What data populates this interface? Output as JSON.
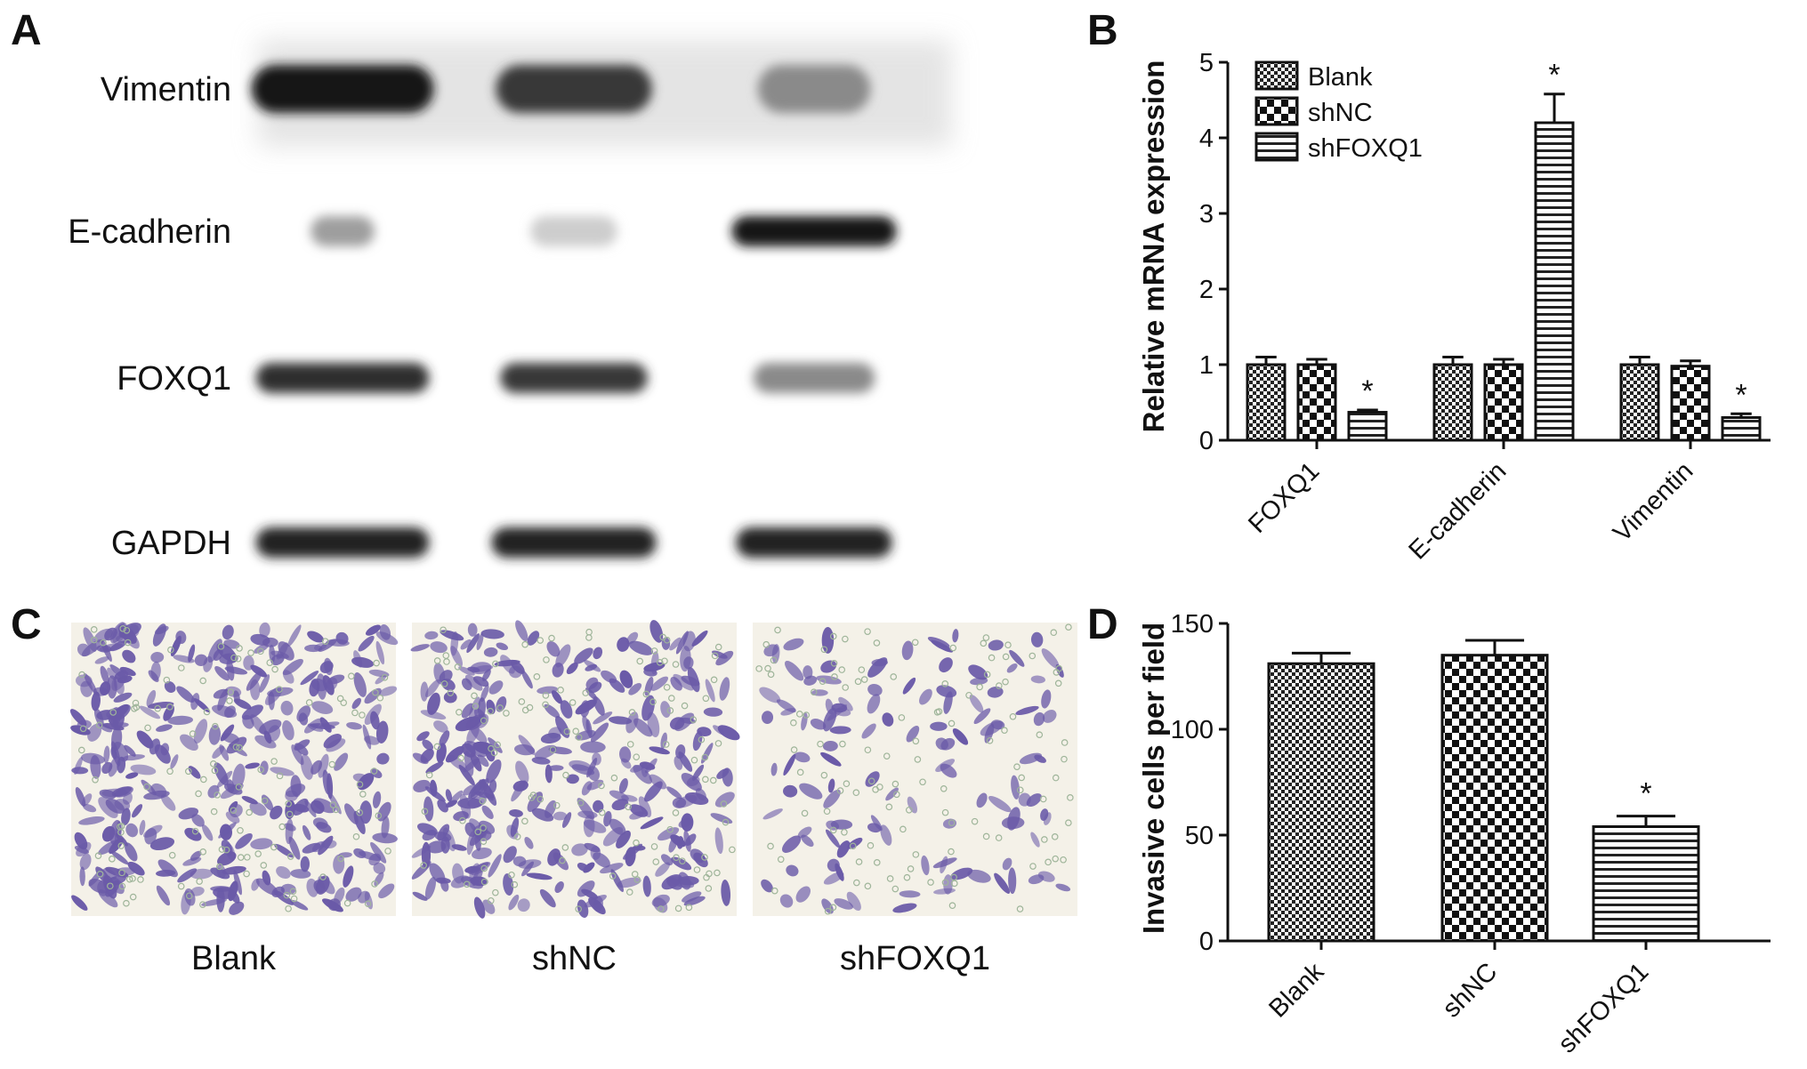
{
  "panels": {
    "a": {
      "letter": "A"
    },
    "b": {
      "letter": "B"
    },
    "c": {
      "letter": "C"
    },
    "d": {
      "letter": "D"
    }
  },
  "blot": {
    "lanes": 3,
    "rows": [
      {
        "label": "Vimentin",
        "intensity": [
          1.0,
          0.85,
          0.45
        ],
        "width": [
          1.0,
          0.9,
          0.65
        ]
      },
      {
        "label": "E-cadherin",
        "intensity": [
          0.35,
          0.12,
          1.0
        ],
        "width": [
          0.35,
          0.5,
          0.95
        ]
      },
      {
        "label": "FOXQ1",
        "intensity": [
          0.9,
          0.85,
          0.45
        ],
        "width": [
          0.95,
          0.85,
          0.7
        ]
      },
      {
        "label": "GAPDH",
        "intensity": [
          0.95,
          0.95,
          0.95
        ],
        "width": [
          0.95,
          0.95,
          0.9
        ]
      }
    ]
  },
  "micrographs": {
    "labels": [
      "Blank",
      "shNC",
      "shFOXQ1"
    ],
    "relative_density": [
      1.0,
      0.9,
      0.35
    ],
    "stain_color": "#6a5aa8",
    "background_color": "#f4f1e8"
  },
  "chart_data": [
    {
      "type": "bar",
      "panel": "B",
      "ylabel": "Relative mRNA expression",
      "categories": [
        "FOXQ1",
        "E-cadherin",
        "Vimentin"
      ],
      "ylim": [
        0,
        5
      ],
      "yticks": [
        0,
        1,
        2,
        3,
        4,
        5
      ],
      "legend_position": "top-left",
      "series": [
        {
          "name": "Blank",
          "pattern": "checker-small",
          "values": [
            1.0,
            1.0,
            1.0
          ],
          "errors": [
            0.1,
            0.1,
            0.1
          ]
        },
        {
          "name": "shNC",
          "pattern": "checker-large",
          "values": [
            1.0,
            1.0,
            0.98
          ],
          "errors": [
            0.07,
            0.07,
            0.07
          ]
        },
        {
          "name": "shFOXQ1",
          "pattern": "horizontal-stripes",
          "values": [
            0.37,
            4.2,
            0.3
          ],
          "errors": [
            0.03,
            0.38,
            0.05
          ],
          "significance": [
            "*",
            "*",
            "*"
          ]
        }
      ]
    },
    {
      "type": "bar",
      "panel": "D",
      "ylabel": "Invasive cells per field",
      "categories": [
        "Blank",
        "shNC",
        "shFOXQ1"
      ],
      "ylim": [
        0,
        150
      ],
      "yticks": [
        0,
        50,
        100,
        150
      ],
      "values": [
        131,
        135,
        54
      ],
      "errors": [
        5,
        7,
        5
      ],
      "patterns": [
        "checker-small",
        "checker-large",
        "horizontal-stripes"
      ],
      "significance": [
        "",
        "",
        "*"
      ]
    }
  ]
}
